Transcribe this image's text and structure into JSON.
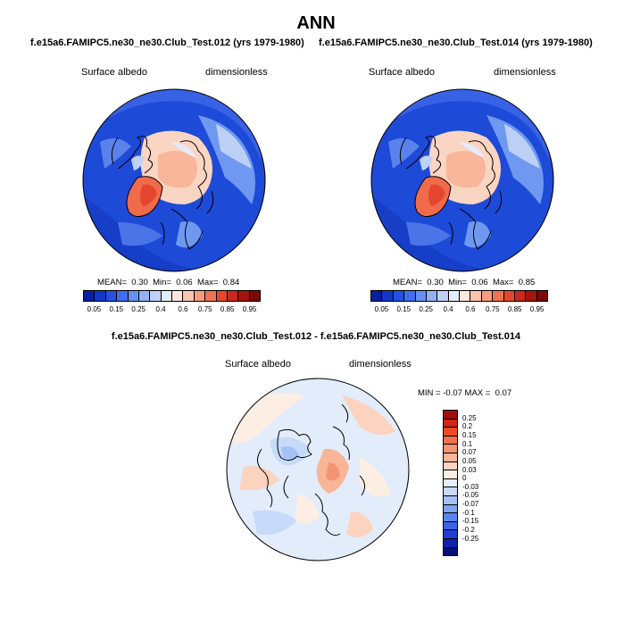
{
  "title": "ANN",
  "panels": [
    {
      "case_title": "f.e15a6.FAMIPC5.ne30_ne30.Club_Test.012 (yrs 1979-1980)",
      "left_label": "Surface albedo",
      "right_label": "dimensionless",
      "mean_label": "MEAN=",
      "mean": "0.30",
      "min_label": "Min=",
      "min": "0.06",
      "max_label": "Max=",
      "max": "0.84"
    },
    {
      "case_title": "f.e15a6.FAMIPC5.ne30_ne30.Club_Test.014 (yrs 1979-1980)",
      "left_label": "Surface albedo",
      "right_label": "dimensionless",
      "mean_label": "MEAN=",
      "mean": "0.30",
      "min_label": "Min=",
      "min": "0.06",
      "max_label": "Max=",
      "max": "0.85"
    }
  ],
  "diff": {
    "case_title": "f.e15a6.FAMIPC5.ne30_ne30.Club_Test.012 - f.e15a6.FAMIPC5.ne30_ne30.Club_Test.014",
    "left_label": "Surface albedo",
    "right_label": "dimensionless",
    "min_label": "MIN =",
    "min": "-0.07",
    "max_label": "MAX =",
    "max": "0.07"
  },
  "colorbar_main": {
    "colors": [
      "#0a1f9e",
      "#1436c8",
      "#2251e4",
      "#3f6ef0",
      "#6691f2",
      "#92b2f4",
      "#bfd1f7",
      "#e4ecfb",
      "#fde7dc",
      "#fbc6ad",
      "#f79d7f",
      "#f07256",
      "#e4472d",
      "#c9281a",
      "#a3140d",
      "#7a0a06"
    ],
    "ticks": [
      "0.05",
      "0.15",
      "0.25",
      "0.4",
      "0.6",
      "0.75",
      "0.85",
      "0.95"
    ]
  },
  "colorbar_diff": {
    "colors": [
      "#a00d0a",
      "#cf2612",
      "#ec4a22",
      "#f3714a",
      "#f59472",
      "#f8b598",
      "#fbd3bf",
      "#fdeee4",
      "#e4eefc",
      "#c7daf9",
      "#a5c2f6",
      "#7fa4f2",
      "#5b85ee",
      "#3a63e6",
      "#1f40d3",
      "#0d22a8",
      "#070f7a"
    ],
    "ticks": [
      "0.25",
      "0.2",
      "0.15",
      "0.1",
      "0.07",
      "0.05",
      "0.03",
      "0",
      "-0.03",
      "-0.05",
      "-0.07",
      "-0.1",
      "-0.15",
      "-0.2",
      "-0.25"
    ]
  }
}
